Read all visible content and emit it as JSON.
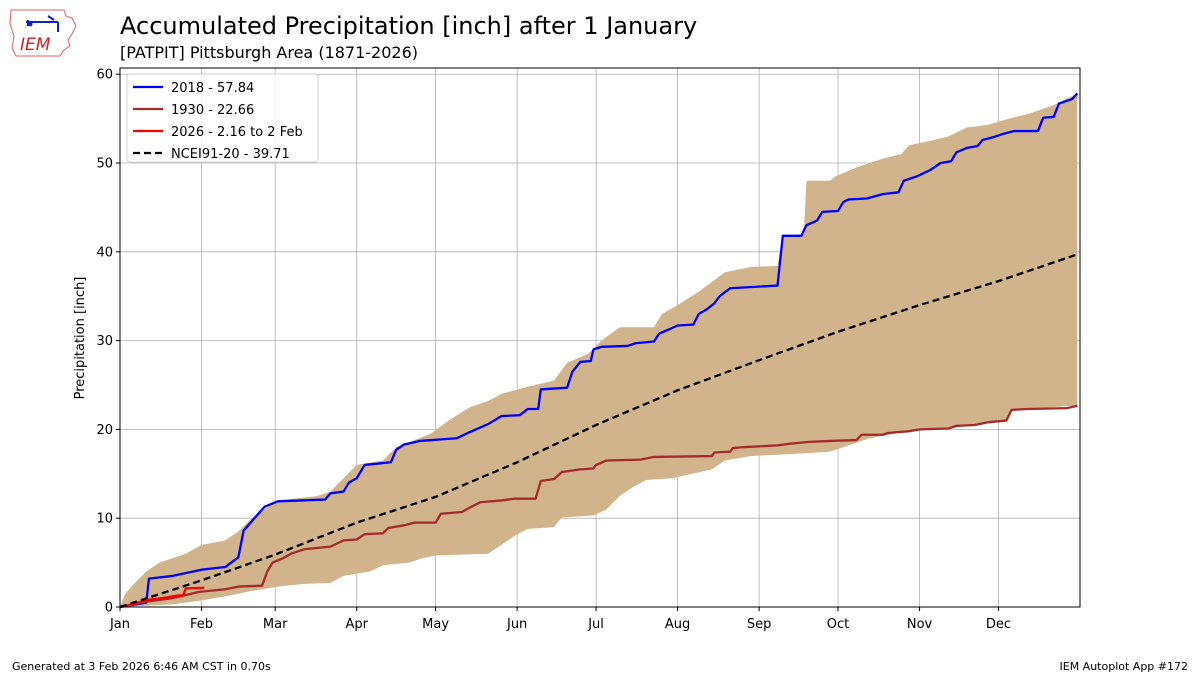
{
  "title": "Accumulated Precipitation [inch] after 1 January",
  "subtitle": "[PATPIT] Pittsburgh Area (1871-2026)",
  "footer_left": "Generated at 3 Feb 2026 6:46 AM CST in 0.70s",
  "footer_right": "IEM Autoplot App #172",
  "logo": {
    "text": "IEM"
  },
  "chart_data": {
    "type": "line",
    "title": "Accumulated Precipitation [inch] after 1 January",
    "xlabel": "",
    "ylabel": "Precipitation [inch]",
    "ylim": [
      0,
      60.7
    ],
    "yticks": [
      0,
      10,
      20,
      30,
      40,
      50,
      60
    ],
    "xticks": [
      "Jan",
      "Feb",
      "Mar",
      "Apr",
      "May",
      "Jun",
      "Jul",
      "Aug",
      "Sep",
      "Oct",
      "Nov",
      "Dec"
    ],
    "grid": true,
    "legend_placement": "top-left",
    "band": {
      "color": "#d2b48c",
      "upper": [
        [
          "01-01",
          0
        ],
        [
          "01-03",
          1.5
        ],
        [
          "01-06",
          2.5
        ],
        [
          "01-11",
          4.0
        ],
        [
          "01-16",
          5.0
        ],
        [
          "01-26",
          6.0
        ],
        [
          "02-01",
          7.0
        ],
        [
          "02-10",
          7.5
        ],
        [
          "02-15",
          8.5
        ],
        [
          "02-20",
          10.0
        ],
        [
          "02-25",
          11.0
        ],
        [
          "03-02",
          12.0
        ],
        [
          "03-17",
          12.5
        ],
        [
          "03-22",
          13.0
        ],
        [
          "03-27",
          14.5
        ],
        [
          "04-01",
          16.0
        ],
        [
          "04-11",
          16.5
        ],
        [
          "04-16",
          18.0
        ],
        [
          "04-23",
          18.8
        ],
        [
          "04-29",
          19.5
        ],
        [
          "05-06",
          21.0
        ],
        [
          "05-14",
          22.5
        ],
        [
          "05-21",
          23.2
        ],
        [
          "05-26",
          24.0
        ],
        [
          "06-05",
          24.8
        ],
        [
          "06-15",
          25.5
        ],
        [
          "06-20",
          27.5
        ],
        [
          "06-28",
          28.5
        ],
        [
          "07-03",
          30.0
        ],
        [
          "07-10",
          31.5
        ],
        [
          "07-23",
          31.5
        ],
        [
          "07-26",
          33.0
        ],
        [
          "08-01",
          34.0
        ],
        [
          "08-09",
          35.5
        ],
        [
          "08-19",
          37.7
        ],
        [
          "08-29",
          38.3
        ],
        [
          "09-08",
          38.4
        ],
        [
          "09-10",
          41.8
        ],
        [
          "09-18",
          42.0
        ],
        [
          "09-19",
          48.0
        ],
        [
          "09-28",
          48.0
        ],
        [
          "09-30",
          48.5
        ],
        [
          "10-08",
          49.5
        ],
        [
          "10-18",
          50.5
        ],
        [
          "10-25",
          51.0
        ],
        [
          "10-28",
          52.0
        ],
        [
          "11-05",
          52.5
        ],
        [
          "11-12",
          53.0
        ],
        [
          "11-19",
          54.0
        ],
        [
          "11-27",
          54.3
        ],
        [
          "12-05",
          55.0
        ],
        [
          "12-12",
          55.5
        ],
        [
          "12-22",
          56.5
        ],
        [
          "12-31",
          57.84
        ]
      ],
      "lower": [
        [
          "01-01",
          0
        ],
        [
          "01-21",
          0.3
        ],
        [
          "01-31",
          0.7
        ],
        [
          "02-10",
          1.2
        ],
        [
          "02-20",
          1.8
        ],
        [
          "03-02",
          2.3
        ],
        [
          "03-12",
          2.6
        ],
        [
          "03-22",
          2.7
        ],
        [
          "03-27",
          3.5
        ],
        [
          "04-06",
          4.0
        ],
        [
          "04-11",
          4.7
        ],
        [
          "04-21",
          5.0
        ],
        [
          "04-26",
          5.5
        ],
        [
          "05-01",
          5.8
        ],
        [
          "05-21",
          6.0
        ],
        [
          "05-26",
          7.0
        ],
        [
          "05-31",
          8.0
        ],
        [
          "06-05",
          8.8
        ],
        [
          "06-15",
          9.0
        ],
        [
          "06-18",
          10.1
        ],
        [
          "06-30",
          10.3
        ],
        [
          "07-05",
          11.0
        ],
        [
          "07-10",
          12.5
        ],
        [
          "07-15",
          13.5
        ],
        [
          "07-20",
          14.3
        ],
        [
          "07-30",
          14.5
        ],
        [
          "08-14",
          15.5
        ],
        [
          "08-19",
          16.5
        ],
        [
          "08-29",
          17.0
        ],
        [
          "09-18",
          17.3
        ],
        [
          "09-28",
          17.5
        ],
        [
          "10-03",
          18.0
        ],
        [
          "10-13",
          19.0
        ],
        [
          "10-28",
          19.8
        ],
        [
          "11-12",
          20.1
        ],
        [
          "11-27",
          20.8
        ],
        [
          "12-04",
          21.0
        ],
        [
          "12-06",
          22.2
        ],
        [
          "12-31",
          22.7
        ]
      ]
    },
    "series": [
      {
        "name": "2018 - 57.84",
        "color": "#0000ff",
        "dash": false,
        "points": [
          [
            "01-01",
            0
          ],
          [
            "01-11",
            0.5
          ],
          [
            "01-12",
            3.2
          ],
          [
            "01-21",
            3.5
          ],
          [
            "02-01",
            4.2
          ],
          [
            "02-10",
            4.5
          ],
          [
            "02-15",
            5.6
          ],
          [
            "02-17",
            8.6
          ],
          [
            "02-22",
            10.3
          ],
          [
            "02-25",
            11.3
          ],
          [
            "03-02",
            11.9
          ],
          [
            "03-20",
            12.1
          ],
          [
            "03-22",
            12.8
          ],
          [
            "03-27",
            13.0
          ],
          [
            "03-29",
            14.0
          ],
          [
            "04-01",
            14.5
          ],
          [
            "04-04",
            16.0
          ],
          [
            "04-14",
            16.3
          ],
          [
            "04-16",
            17.7
          ],
          [
            "04-19",
            18.3
          ],
          [
            "04-25",
            18.7
          ],
          [
            "05-09",
            19.0
          ],
          [
            "05-14",
            19.7
          ],
          [
            "05-21",
            20.6
          ],
          [
            "05-26",
            21.5
          ],
          [
            "06-02",
            21.6
          ],
          [
            "06-05",
            22.3
          ],
          [
            "06-09",
            22.3
          ],
          [
            "06-10",
            24.5
          ],
          [
            "06-20",
            24.7
          ],
          [
            "06-22",
            26.5
          ],
          [
            "06-25",
            27.6
          ],
          [
            "06-29",
            27.7
          ],
          [
            "06-30",
            29.0
          ],
          [
            "07-03",
            29.3
          ],
          [
            "07-13",
            29.4
          ],
          [
            "07-16",
            29.7
          ],
          [
            "07-23",
            29.9
          ],
          [
            "07-25",
            30.8
          ],
          [
            "07-29",
            31.3
          ],
          [
            "08-01",
            31.7
          ],
          [
            "08-07",
            31.8
          ],
          [
            "08-09",
            33.0
          ],
          [
            "08-12",
            33.5
          ],
          [
            "08-15",
            34.2
          ],
          [
            "08-17",
            35.0
          ],
          [
            "08-21",
            35.9
          ],
          [
            "09-08",
            36.2
          ],
          [
            "09-09",
            39.0
          ],
          [
            "09-10",
            41.8
          ],
          [
            "09-17",
            41.8
          ],
          [
            "09-19",
            43.0
          ],
          [
            "09-23",
            43.5
          ],
          [
            "09-25",
            44.5
          ],
          [
            "10-01",
            44.6
          ],
          [
            "10-03",
            45.6
          ],
          [
            "10-05",
            45.9
          ],
          [
            "10-12",
            46.0
          ],
          [
            "10-18",
            46.5
          ],
          [
            "10-24",
            46.7
          ],
          [
            "10-26",
            48.0
          ],
          [
            "10-31",
            48.5
          ],
          [
            "11-05",
            49.2
          ],
          [
            "11-09",
            50.0
          ],
          [
            "11-13",
            50.2
          ],
          [
            "11-15",
            51.2
          ],
          [
            "11-19",
            51.7
          ],
          [
            "11-23",
            51.9
          ],
          [
            "11-25",
            52.6
          ],
          [
            "11-29",
            52.9
          ],
          [
            "12-03",
            53.3
          ],
          [
            "12-07",
            53.6
          ],
          [
            "12-16",
            53.6
          ],
          [
            "12-18",
            55.1
          ],
          [
            "12-22",
            55.2
          ],
          [
            "12-24",
            56.7
          ],
          [
            "12-29",
            57.2
          ],
          [
            "12-31",
            57.84
          ]
        ]
      },
      {
        "name": "1930 - 22.66",
        "color": "#a52a2a",
        "dash": false,
        "points": [
          [
            "01-01",
            0
          ],
          [
            "01-11",
            0.6
          ],
          [
            "01-21",
            1.0
          ],
          [
            "01-31",
            1.7
          ],
          [
            "02-10",
            2.0
          ],
          [
            "02-15",
            2.3
          ],
          [
            "02-24",
            2.4
          ],
          [
            "02-26",
            4.0
          ],
          [
            "02-28",
            5.0
          ],
          [
            "03-04",
            5.5
          ],
          [
            "03-07",
            6.0
          ],
          [
            "03-12",
            6.5
          ],
          [
            "03-22",
            6.8
          ],
          [
            "03-27",
            7.5
          ],
          [
            "04-01",
            7.6
          ],
          [
            "04-04",
            8.2
          ],
          [
            "04-11",
            8.3
          ],
          [
            "04-13",
            8.9
          ],
          [
            "04-19",
            9.2
          ],
          [
            "04-23",
            9.5
          ],
          [
            "05-01",
            9.5
          ],
          [
            "05-03",
            10.5
          ],
          [
            "05-11",
            10.7
          ],
          [
            "05-14",
            11.2
          ],
          [
            "05-18",
            11.8
          ],
          [
            "05-26",
            12.0
          ],
          [
            "05-31",
            12.2
          ],
          [
            "06-08",
            12.2
          ],
          [
            "06-10",
            14.2
          ],
          [
            "06-15",
            14.4
          ],
          [
            "06-18",
            15.2
          ],
          [
            "06-25",
            15.5
          ],
          [
            "06-30",
            15.6
          ],
          [
            "07-01",
            16.0
          ],
          [
            "07-05",
            16.5
          ],
          [
            "07-18",
            16.6
          ],
          [
            "07-23",
            16.9
          ],
          [
            "08-14",
            17.0
          ],
          [
            "08-15",
            17.4
          ],
          [
            "08-21",
            17.5
          ],
          [
            "08-22",
            17.9
          ],
          [
            "08-26",
            18.0
          ],
          [
            "09-08",
            18.2
          ],
          [
            "09-13",
            18.4
          ],
          [
            "09-20",
            18.6
          ],
          [
            "09-28",
            18.7
          ],
          [
            "10-08",
            18.8
          ],
          [
            "10-10",
            19.4
          ],
          [
            "10-18",
            19.4
          ],
          [
            "10-20",
            19.6
          ],
          [
            "10-28",
            19.8
          ],
          [
            "11-01",
            20.0
          ],
          [
            "11-12",
            20.1
          ],
          [
            "11-15",
            20.4
          ],
          [
            "11-22",
            20.5
          ],
          [
            "11-27",
            20.8
          ],
          [
            "12-04",
            21.0
          ],
          [
            "12-06",
            22.2
          ],
          [
            "12-12",
            22.3
          ],
          [
            "12-27",
            22.4
          ],
          [
            "12-31",
            22.66
          ]
        ]
      },
      {
        "name": "2026 - 2.16 to 2 Feb",
        "color": "#ff0000",
        "dash": false,
        "points": [
          [
            "01-01",
            0
          ],
          [
            "01-06",
            0.3
          ],
          [
            "01-11",
            0.8
          ],
          [
            "01-17",
            1.0
          ],
          [
            "01-23",
            1.3
          ],
          [
            "01-25",
            1.3
          ],
          [
            "01-26",
            2.1
          ],
          [
            "02-02",
            2.16
          ]
        ]
      },
      {
        "name": "NCEI91-20 - 39.71",
        "color": "#000000",
        "dash": true,
        "points": [
          [
            "01-01",
            0
          ],
          [
            "02-01",
            3.0
          ],
          [
            "03-01",
            5.9
          ],
          [
            "04-01",
            9.5
          ],
          [
            "05-01",
            12.4
          ],
          [
            "06-01",
            16.3
          ],
          [
            "07-01",
            20.5
          ],
          [
            "08-01",
            24.4
          ],
          [
            "09-01",
            27.8
          ],
          [
            "10-01",
            31.0
          ],
          [
            "11-01",
            34.0
          ],
          [
            "12-01",
            36.7
          ],
          [
            "12-31",
            39.71
          ]
        ]
      }
    ]
  }
}
